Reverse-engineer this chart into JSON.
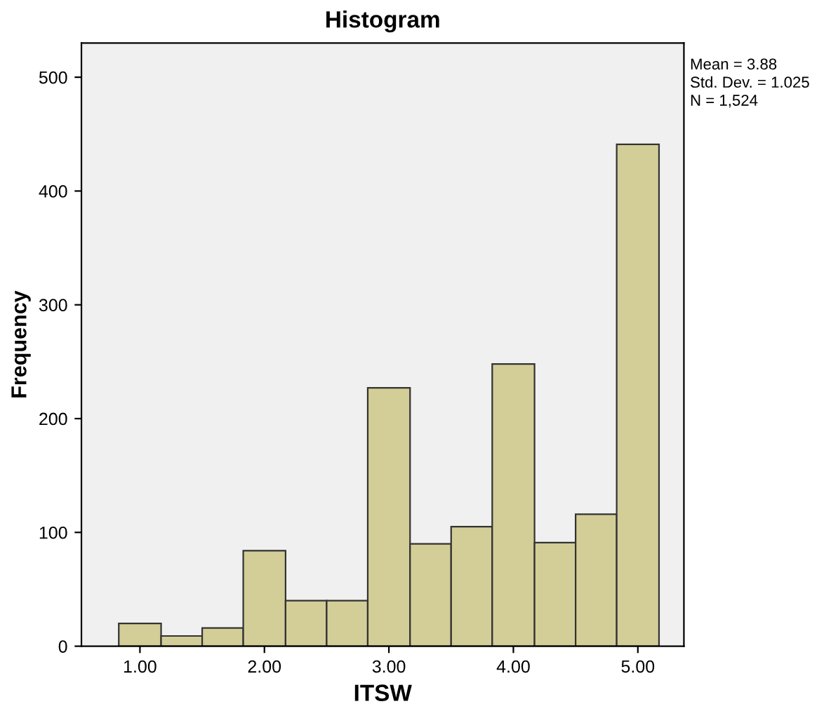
{
  "chart_data": {
    "type": "histogram",
    "title": "Histogram",
    "xlabel": "ITSW",
    "ylabel": "Frequency",
    "bins": [
      0.83,
      1.17,
      1.5,
      1.83,
      2.17,
      2.5,
      2.83,
      3.17,
      3.5,
      3.83,
      4.17,
      4.5,
      4.83,
      5.17
    ],
    "values": [
      20,
      9,
      16,
      84,
      40,
      40,
      227,
      90,
      105,
      248,
      91,
      116,
      441
    ],
    "color": "#d3ce97",
    "xlim": [
      0.53,
      5.37
    ],
    "xticks": [
      {
        "value": 1,
        "label": "1.00"
      },
      {
        "value": 2,
        "label": "2.00"
      },
      {
        "value": 3,
        "label": "3.00"
      },
      {
        "value": 4,
        "label": "4.00"
      },
      {
        "value": 5,
        "label": "5.00"
      }
    ],
    "ylim": [
      0,
      530
    ],
    "yticks": [
      0,
      100,
      200,
      300,
      400,
      500
    ],
    "grid": false,
    "annotations": [
      "Mean = 3.88",
      "Std. Dev. = 1.025",
      "N = 1,524"
    ]
  }
}
